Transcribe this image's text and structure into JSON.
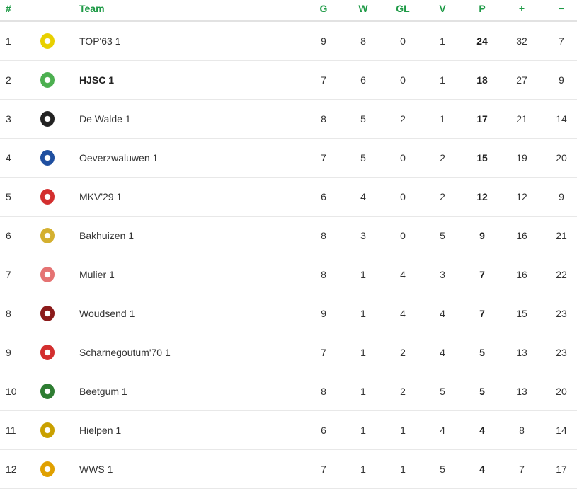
{
  "header": {
    "rank": "#",
    "team": "Team",
    "g": "G",
    "w": "W",
    "gl": "GL",
    "v": "V",
    "p": "P",
    "plus": "+",
    "minus": "−"
  },
  "rows": [
    {
      "rank": "1",
      "team": "TOP'63 1",
      "g": "9",
      "w": "8",
      "gl": "0",
      "v": "1",
      "p": "24",
      "plus": "32",
      "minus": "7",
      "logo": "#e8d000",
      "highlight": false
    },
    {
      "rank": "2",
      "team": "HJSC 1",
      "g": "7",
      "w": "6",
      "gl": "0",
      "v": "1",
      "p": "18",
      "plus": "27",
      "minus": "9",
      "logo": "#4caf50",
      "highlight": true
    },
    {
      "rank": "3",
      "team": "De Walde 1",
      "g": "8",
      "w": "5",
      "gl": "2",
      "v": "1",
      "p": "17",
      "plus": "21",
      "minus": "14",
      "logo": "#222222",
      "highlight": false
    },
    {
      "rank": "4",
      "team": "Oeverzwaluwen 1",
      "g": "7",
      "w": "5",
      "gl": "0",
      "v": "2",
      "p": "15",
      "plus": "19",
      "minus": "20",
      "logo": "#1f4fa0",
      "highlight": false
    },
    {
      "rank": "5",
      "team": "MKV'29 1",
      "g": "6",
      "w": "4",
      "gl": "0",
      "v": "2",
      "p": "12",
      "plus": "12",
      "minus": "9",
      "logo": "#d32f2f",
      "highlight": false
    },
    {
      "rank": "6",
      "team": "Bakhuizen 1",
      "g": "8",
      "w": "3",
      "gl": "0",
      "v": "5",
      "p": "9",
      "plus": "16",
      "minus": "21",
      "logo": "#d4b030",
      "highlight": false
    },
    {
      "rank": "7",
      "team": "Mulier 1",
      "g": "8",
      "w": "1",
      "gl": "4",
      "v": "3",
      "p": "7",
      "plus": "16",
      "minus": "22",
      "logo": "#e57373",
      "highlight": false
    },
    {
      "rank": "8",
      "team": "Woudsend 1",
      "g": "9",
      "w": "1",
      "gl": "4",
      "v": "4",
      "p": "7",
      "plus": "15",
      "minus": "23",
      "logo": "#8b1a1a",
      "highlight": false
    },
    {
      "rank": "9",
      "team": "Scharnegoutum'70 1",
      "g": "7",
      "w": "1",
      "gl": "2",
      "v": "4",
      "p": "5",
      "plus": "13",
      "minus": "23",
      "logo": "#d32f2f",
      "highlight": false
    },
    {
      "rank": "10",
      "team": "Beetgum 1",
      "g": "8",
      "w": "1",
      "gl": "2",
      "v": "5",
      "p": "5",
      "plus": "13",
      "minus": "20",
      "logo": "#2e7d32",
      "highlight": false
    },
    {
      "rank": "11",
      "team": "Hielpen 1",
      "g": "6",
      "w": "1",
      "gl": "1",
      "v": "4",
      "p": "4",
      "plus": "8",
      "minus": "14",
      "logo": "#c9a000",
      "highlight": false
    },
    {
      "rank": "12",
      "team": "WWS 1",
      "g": "7",
      "w": "1",
      "gl": "1",
      "v": "5",
      "p": "4",
      "plus": "7",
      "minus": "17",
      "logo": "#e0a000",
      "highlight": false
    }
  ]
}
